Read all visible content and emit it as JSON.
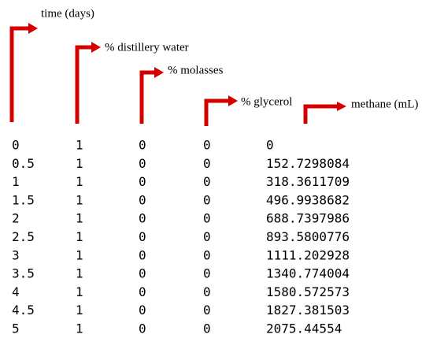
{
  "headers": [
    "time (days)",
    "% distillery water",
    "% molasses",
    "% glycerol",
    "methane (mL)"
  ],
  "table": {
    "rows": [
      [
        "0",
        "1",
        "0",
        "0",
        "0"
      ],
      [
        "0.5",
        "1",
        "0",
        "0",
        "152.7298084"
      ],
      [
        "1",
        "1",
        "0",
        "0",
        "318.3611709"
      ],
      [
        "1.5",
        "1",
        "0",
        "0",
        "496.9938682"
      ],
      [
        "2",
        "1",
        "0",
        "0",
        "688.7397986"
      ],
      [
        "2.5",
        "1",
        "0",
        "0",
        "893.5800776"
      ],
      [
        "3",
        "1",
        "0",
        "0",
        "1111.202928"
      ],
      [
        "3.5",
        "1",
        "0",
        "0",
        "1340.774004"
      ],
      [
        "4",
        "1",
        "0",
        "0",
        "1580.572573"
      ],
      [
        "4.5",
        "1",
        "0",
        "0",
        "1827.381503"
      ],
      [
        "5",
        "1",
        "0",
        "0",
        "2075.44554"
      ]
    ]
  }
}
